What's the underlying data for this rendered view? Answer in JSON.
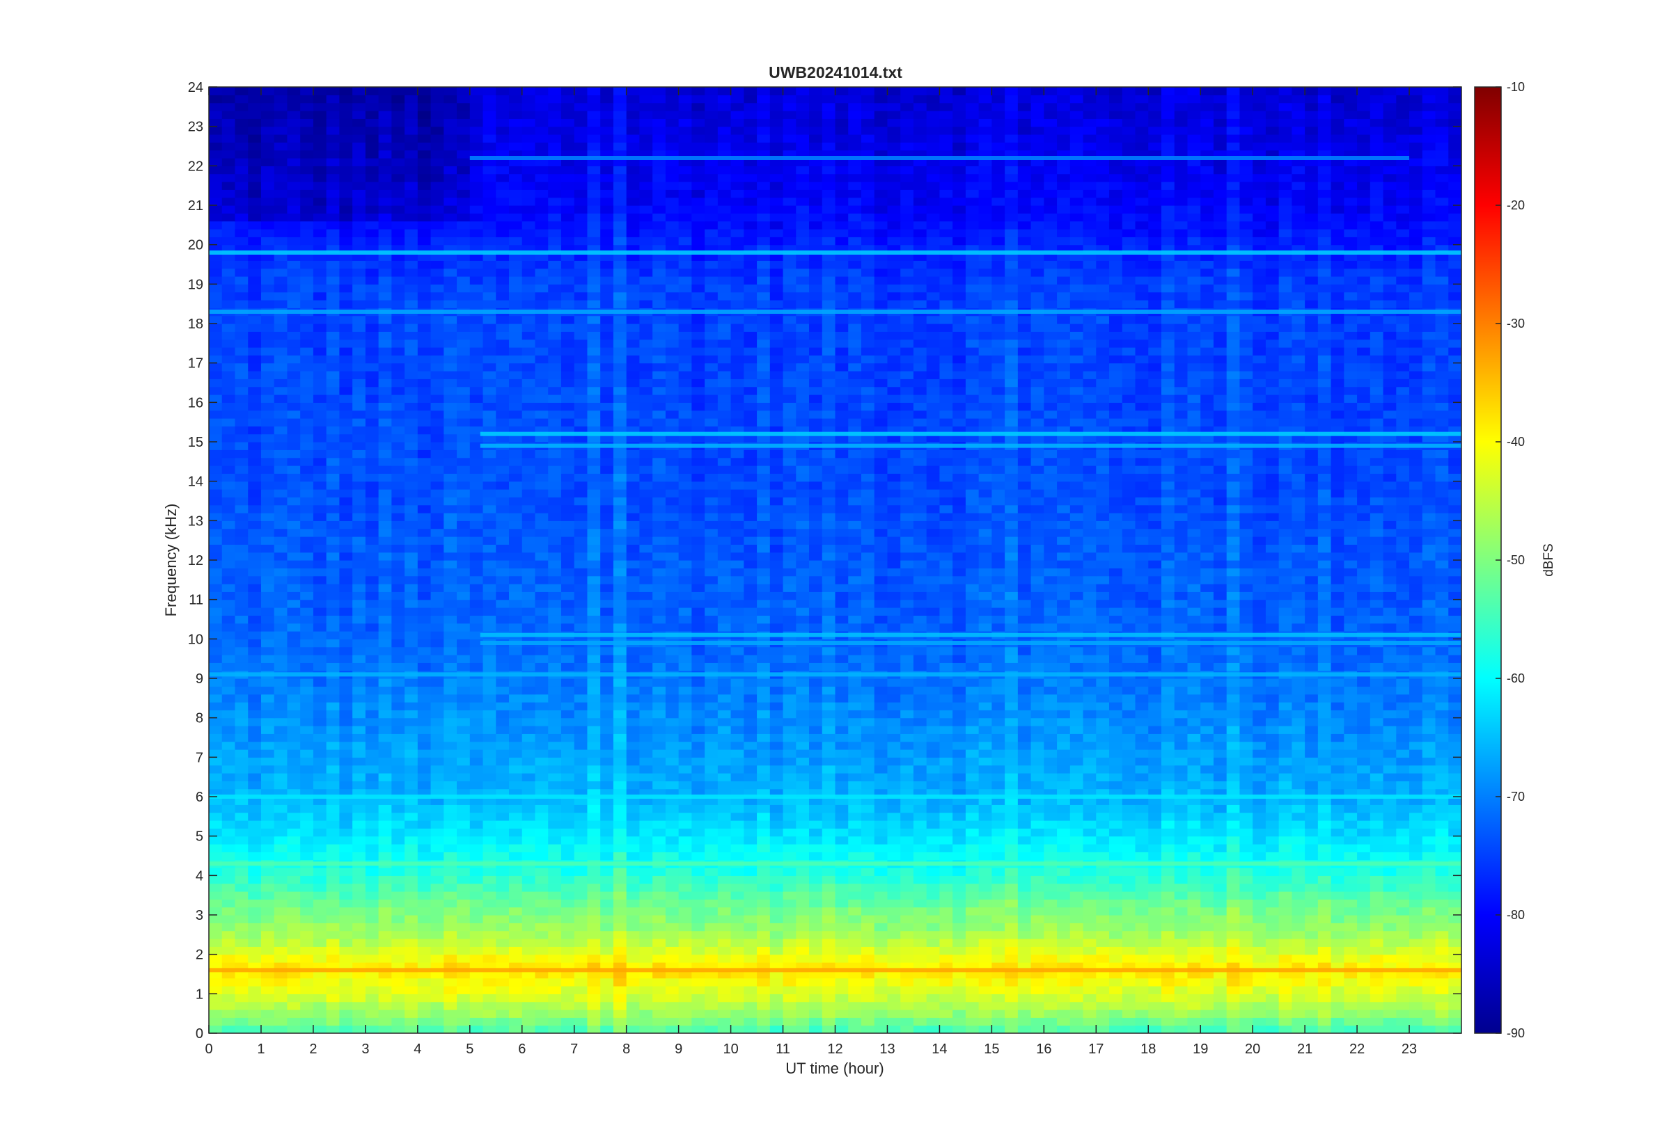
{
  "chart_data": {
    "type": "heatmap",
    "title": "UWB20241014.txt",
    "xlabel": "UT time (hour)",
    "ylabel": "Frequency (kHz)",
    "xlim": [
      0,
      24
    ],
    "ylim": [
      0,
      24
    ],
    "x_ticks": [
      0,
      1,
      2,
      3,
      4,
      5,
      6,
      7,
      8,
      9,
      10,
      11,
      12,
      13,
      14,
      15,
      16,
      17,
      18,
      19,
      20,
      21,
      22,
      23
    ],
    "y_ticks": [
      0,
      1,
      2,
      3,
      4,
      5,
      6,
      7,
      8,
      9,
      10,
      11,
      12,
      13,
      14,
      15,
      16,
      17,
      18,
      19,
      20,
      21,
      22,
      23,
      24
    ],
    "colorbar": {
      "label": "dBFS",
      "colormap": "jet",
      "range": [
        -90,
        -10
      ],
      "ticks": [
        -10,
        -20,
        -30,
        -40,
        -50,
        -60,
        -70,
        -80,
        -90
      ]
    },
    "grid": false,
    "approx_level_by_frequency_khz": [
      {
        "f": 0.0,
        "dbfs": -55
      },
      {
        "f": 0.5,
        "dbfs": -48
      },
      {
        "f": 1.0,
        "dbfs": -43
      },
      {
        "f": 1.6,
        "dbfs": -38
      },
      {
        "f": 2.0,
        "dbfs": -42
      },
      {
        "f": 2.6,
        "dbfs": -48
      },
      {
        "f": 3.2,
        "dbfs": -51
      },
      {
        "f": 4.0,
        "dbfs": -57
      },
      {
        "f": 5.0,
        "dbfs": -62
      },
      {
        "f": 6.0,
        "dbfs": -66
      },
      {
        "f": 8.0,
        "dbfs": -69
      },
      {
        "f": 10.0,
        "dbfs": -72
      },
      {
        "f": 14.0,
        "dbfs": -74
      },
      {
        "f": 19.0,
        "dbfs": -75
      },
      {
        "f": 21.0,
        "dbfs": -80
      },
      {
        "f": 24.0,
        "dbfs": -83
      }
    ],
    "persistent_lines_khz": [
      {
        "f": 19.8,
        "dbfs": -64,
        "from_hour": 0,
        "to_hour": 24
      },
      {
        "f": 18.3,
        "dbfs": -67,
        "from_hour": 0,
        "to_hour": 24
      },
      {
        "f": 22.2,
        "dbfs": -70,
        "from_hour": 5,
        "to_hour": 23
      },
      {
        "f": 15.2,
        "dbfs": -64,
        "from_hour": 5.2,
        "to_hour": 24
      },
      {
        "f": 14.9,
        "dbfs": -66,
        "from_hour": 5.2,
        "to_hour": 24
      },
      {
        "f": 10.1,
        "dbfs": -65,
        "from_hour": 5.2,
        "to_hour": 24
      },
      {
        "f": 9.9,
        "dbfs": -67,
        "from_hour": 5.2,
        "to_hour": 24
      },
      {
        "f": 9.1,
        "dbfs": -66,
        "from_hour": 0,
        "to_hour": 24
      },
      {
        "f": 6.0,
        "dbfs": -62,
        "from_hour": 0,
        "to_hour": 24
      },
      {
        "f": 4.3,
        "dbfs": -54,
        "from_hour": 0,
        "to_hour": 24
      },
      {
        "f": 1.6,
        "dbfs": -33,
        "from_hour": 0,
        "to_hour": 24
      }
    ]
  }
}
